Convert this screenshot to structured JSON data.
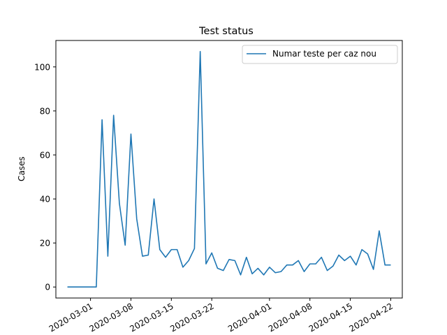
{
  "chart_data": {
    "type": "line",
    "title": "Test status",
    "xlabel": "",
    "ylabel": "Cases",
    "x_start": "2020-02-26",
    "x_end": "2020-04-22",
    "xlim": [
      "2020-02-24",
      "2020-04-24"
    ],
    "ylim": [
      -5,
      112
    ],
    "xticks": [
      "2020-03-01",
      "2020-03-08",
      "2020-03-15",
      "2020-03-22",
      "2020-04-01",
      "2020-04-08",
      "2020-04-15",
      "2020-04-22"
    ],
    "yticks": [
      0,
      20,
      40,
      60,
      80,
      100
    ],
    "grid": false,
    "legend": "top-right",
    "series": [
      {
        "name": "Numar teste per caz nou",
        "color": "#1f77b4",
        "values": [
          0,
          0,
          0,
          0,
          0,
          0,
          76,
          14,
          78,
          38,
          19,
          69.5,
          31,
          14,
          14.5,
          40,
          17,
          13.5,
          17,
          17,
          9,
          12,
          17.5,
          107,
          10.5,
          15.5,
          8.5,
          7.5,
          12.5,
          12,
          5.5,
          13.5,
          6,
          8.5,
          5.5,
          9,
          6.5,
          7,
          10,
          10,
          12,
          7,
          10.5,
          10.5,
          13.5,
          7.5,
          9.5,
          14.5,
          12,
          14,
          10,
          17,
          15,
          8,
          25.5,
          10,
          10
        ]
      }
    ]
  }
}
